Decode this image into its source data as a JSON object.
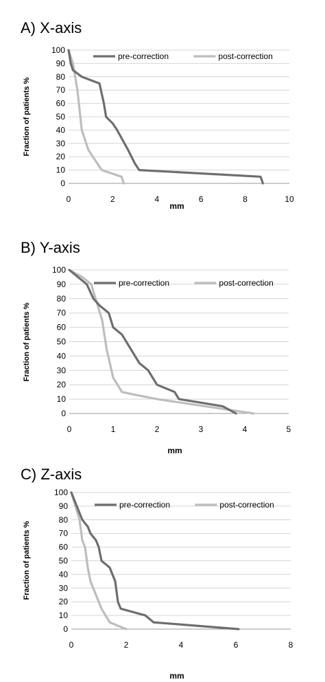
{
  "chart_data": [
    {
      "type": "line",
      "title": "A) X-axis",
      "xlabel": "mm",
      "ylabel": "Fraction of patients %",
      "xlim": [
        0,
        10
      ],
      "ylim": [
        0,
        100
      ],
      "xticks": [
        "0",
        "2",
        "4",
        "6",
        "8",
        "10"
      ],
      "yticks": [
        "0",
        "10",
        "20",
        "30",
        "40",
        "50",
        "60",
        "70",
        "80",
        "90",
        "100"
      ],
      "grid": true,
      "legend": "top-right",
      "series": [
        {
          "name": "pre-correction",
          "color": "#6e6e6e",
          "x": [
            0,
            0.1,
            0.2,
            0.6,
            1.4,
            1.6,
            1.7,
            2.0,
            2.2,
            2.7,
            3.0,
            3.2,
            8.7,
            8.8
          ],
          "y": [
            100,
            90,
            85,
            80,
            75,
            60,
            50,
            45,
            40,
            25,
            15,
            10,
            5,
            0
          ]
        },
        {
          "name": "post-correction",
          "color": "#bdbdbd",
          "x": [
            0,
            0.2,
            0.4,
            0.6,
            0.9,
            1.3,
            1.5,
            2.4,
            2.5
          ],
          "y": [
            100,
            90,
            70,
            40,
            25,
            15,
            10,
            5,
            0
          ]
        }
      ]
    },
    {
      "type": "line",
      "title": "B) Y-axis",
      "xlabel": "mm",
      "ylabel": "Fraction of patients %",
      "xlim": [
        0,
        5
      ],
      "ylim": [
        0,
        100
      ],
      "xticks": [
        "0",
        "1",
        "2",
        "3",
        "4",
        "5"
      ],
      "yticks": [
        "0",
        "10",
        "20",
        "30",
        "40",
        "50",
        "60",
        "70",
        "80",
        "90",
        "100"
      ],
      "grid": true,
      "legend": "top-right",
      "series": [
        {
          "name": "pre-correction",
          "color": "#6e6e6e",
          "x": [
            0,
            0.4,
            0.55,
            0.7,
            0.9,
            1.0,
            1.2,
            1.6,
            1.8,
            2.0,
            2.4,
            2.5,
            3.5,
            3.8
          ],
          "y": [
            100,
            90,
            80,
            75,
            70,
            60,
            55,
            35,
            30,
            20,
            15,
            10,
            5,
            0
          ]
        },
        {
          "name": "post-correction",
          "color": "#bdbdbd",
          "x": [
            0,
            0.3,
            0.5,
            0.65,
            0.75,
            0.85,
            1.0,
            1.2,
            1.5,
            2.0,
            4.2
          ],
          "y": [
            100,
            95,
            90,
            75,
            65,
            45,
            25,
            15,
            13,
            10,
            0
          ]
        }
      ]
    },
    {
      "type": "line",
      "title": "C) Z-axis",
      "xlabel": "mm",
      "ylabel": "Fraction of patients %",
      "xlim": [
        0,
        8
      ],
      "ylim": [
        0,
        100
      ],
      "xticks": [
        "0",
        "2",
        "4",
        "6",
        "8"
      ],
      "yticks": [
        "0",
        "10",
        "20",
        "30",
        "40",
        "50",
        "60",
        "70",
        "80",
        "90",
        "100"
      ],
      "grid": true,
      "legend": "top-right",
      "series": [
        {
          "name": "pre-correction",
          "color": "#6e6e6e",
          "x": [
            0,
            0.4,
            0.6,
            0.7,
            0.9,
            1.0,
            1.1,
            1.4,
            1.6,
            1.7,
            1.8,
            2.7,
            3.0,
            6.1
          ],
          "y": [
            100,
            80,
            75,
            70,
            65,
            60,
            50,
            45,
            35,
            20,
            15,
            10,
            5,
            0
          ]
        },
        {
          "name": "post-correction",
          "color": "#bdbdbd",
          "x": [
            0,
            0.3,
            0.4,
            0.5,
            0.6,
            0.7,
            1.1,
            1.4,
            2.0
          ],
          "y": [
            100,
            80,
            65,
            60,
            45,
            35,
            15,
            5,
            0
          ]
        }
      ]
    }
  ]
}
